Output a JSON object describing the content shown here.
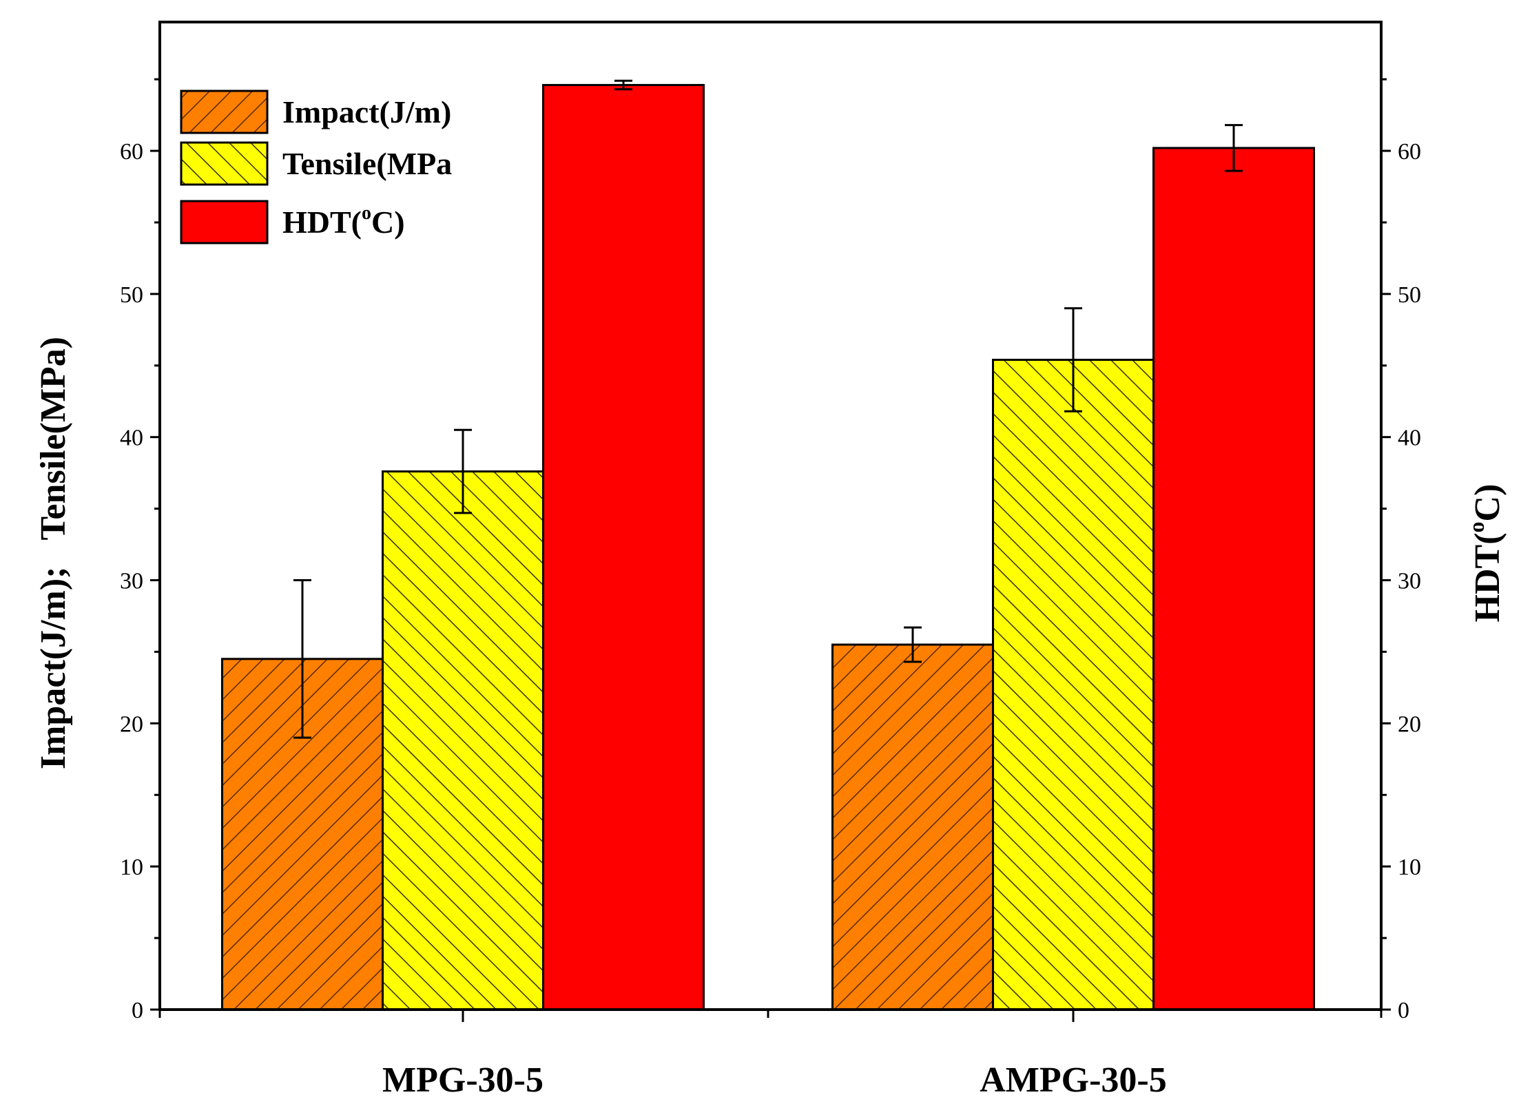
{
  "chart_data": {
    "type": "bar",
    "categories": [
      "MPG-30-5",
      "AMPG-30-5"
    ],
    "series": [
      {
        "name": "Impact(J/m)",
        "axis": "left",
        "color": "#ff7f00",
        "pattern": "hatch",
        "values": [
          24.5,
          25.5
        ],
        "errors": [
          5.5,
          1.2
        ]
      },
      {
        "name": "Tensile(MPa)",
        "axis": "left",
        "color": "#ffff00",
        "pattern": "hatch",
        "values": [
          37.6,
          45.4
        ],
        "errors": [
          2.9,
          3.6
        ]
      },
      {
        "name": "HDT(°C)",
        "axis": "right",
        "color": "#ff0000",
        "pattern": "solid",
        "values": [
          64.6,
          60.2
        ],
        "errors": [
          0.3,
          1.6
        ]
      }
    ],
    "ylabel": "Impact(J/m);   Tensile(MPa)",
    "ylabel_right_prefix": "HDT(",
    "ylabel_right_degree": "o",
    "ylabel_right_suffix": "C)",
    "ylim": [
      0,
      69
    ],
    "ylim_right": [
      0,
      69
    ],
    "yticks": [
      0,
      10,
      20,
      30,
      40,
      50,
      60
    ],
    "yticks_right": [
      0,
      10,
      20,
      30,
      40,
      50,
      60
    ],
    "legend_position": "top-left",
    "legend": {
      "impact": "Impact(J/m)",
      "tensile": "Tensile(MPa",
      "hdt_prefix": "HDT(",
      "hdt_degree": "o",
      "hdt_suffix": "C)"
    }
  }
}
